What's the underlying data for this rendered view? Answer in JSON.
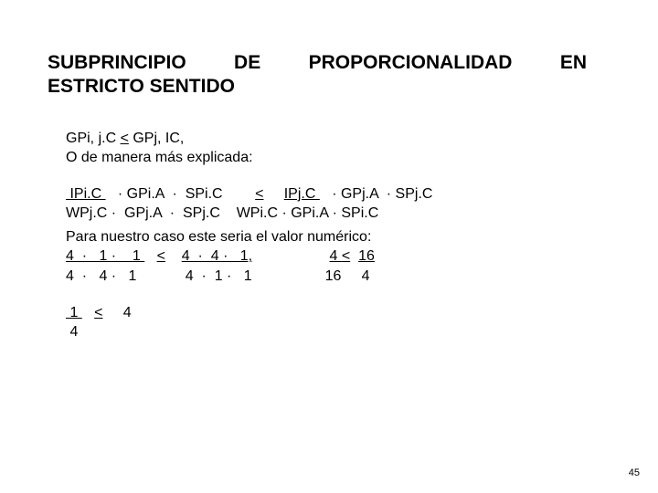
{
  "title_line1": "SUBPRINCIPIO DE PROPORCIONALIDAD EN",
  "title_line2": "ESTRICTO SENTIDO",
  "line1": "GPi, j.C ",
  "line1_u": "<",
  "line1b": " GPj, IC,",
  "line2": "O de manera más explicada:",
  "f_num_left_a": " IPi.C ",
  "f_num_left_b": "   · GPi.A  ·  SPi.C  ",
  "f_num_mid": "      ",
  "f_num_lt": "<",
  "f_num_right_pre": "     ",
  "f_num_right_a": "IPj.C ",
  "f_num_right_b": "   · GPj.A  · SPj.C",
  "f_den": "WPj.C ·  GPj.A  ·  SPj.C    WPi.C · GPi.A · SPi.C",
  "case_intro": "Para nuestro caso este seria el valor numérico:",
  "n_num1": "4  ·   1 ·    1 ",
  "n_mid1": "   ",
  "n_lt1": "<",
  "n_num2_pre": "    ",
  "n_num2": "4  ·  4 ·   1,",
  "n_gap": "                   ",
  "n_r1a": "4 ",
  "n_r1lt": "<",
  "n_r1b": "  ",
  "n_r1c": "16",
  "n_den1": "4  ·   4 ·   1            4  ·  1 ·   1                  16     4",
  "last_a": " 1 ",
  "last_mid": "   ",
  "last_lt": "<",
  "last_b": "     4",
  "last_den": " 4",
  "pagenum": "45"
}
